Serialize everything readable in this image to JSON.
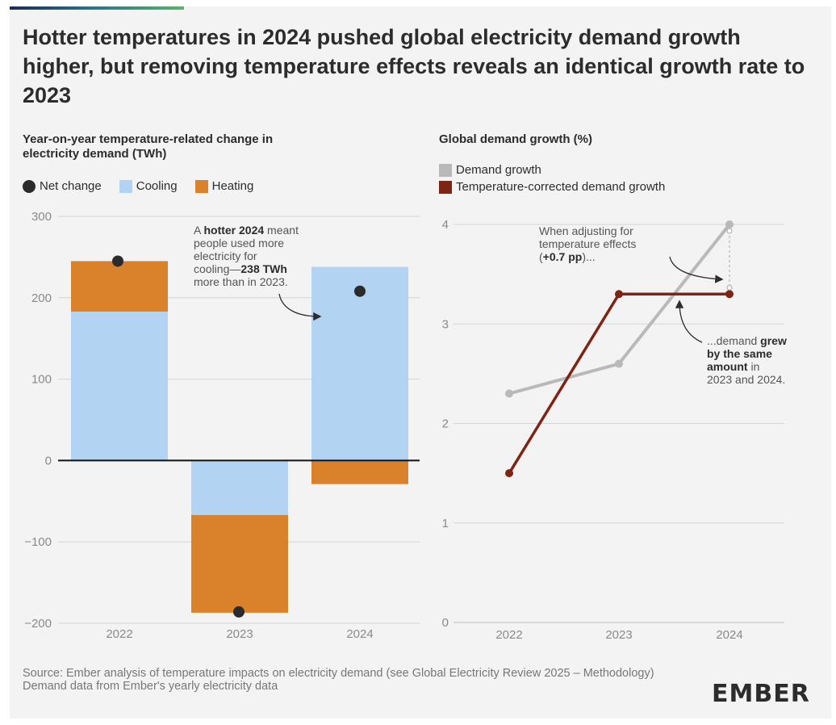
{
  "title": "Hotter temperatures in 2024 pushed global electricity demand growth higher, but removing temperature effects reveals an identical growth rate to 2023",
  "source_lines": [
    "Source: Ember analysis of temperature impacts on electricity demand (see Global Electricity Review 2025 – Methodology)",
    "Demand data from Ember's yearly electricity data"
  ],
  "logo": "EMBER",
  "chart_data": [
    {
      "type": "bar",
      "stacked": true,
      "title": "Year-on-year temperature-related change in electricity demand (TWh)",
      "categories": [
        "2022",
        "2023",
        "2024"
      ],
      "series": [
        {
          "name": "Cooling",
          "color": "#b3d3f2",
          "values": [
            183,
            -67,
            238
          ]
        },
        {
          "name": "Heating",
          "color": "#d9822b",
          "values": [
            62,
            -120,
            -29
          ]
        }
      ],
      "net_change": {
        "name": "Net change",
        "color": "#2b2b2b",
        "values": [
          245,
          -186,
          208
        ]
      },
      "ylim": [
        -200,
        300
      ],
      "yticks": [
        -200,
        -100,
        0,
        100,
        200,
        300
      ],
      "ytick_labels": [
        "−200",
        "−100",
        "0",
        "100",
        "200",
        "300"
      ],
      "grid": true,
      "legend": "top-left",
      "annotation": {
        "lines": [
          [
            {
              "t": "A "
            },
            {
              "t": "hotter 2024",
              "b": true
            },
            {
              "t": " meant"
            }
          ],
          [
            {
              "t": "people used more"
            }
          ],
          [
            {
              "t": "electricity for"
            }
          ],
          [
            {
              "t": "cooling—"
            },
            {
              "t": "238 TWh",
              "b": true
            }
          ],
          [
            {
              "t": "more than in 2023."
            }
          ]
        ]
      }
    },
    {
      "type": "line",
      "title": "Global demand growth (%)",
      "x": [
        "2022",
        "2023",
        "2024"
      ],
      "series": [
        {
          "name": "Demand growth",
          "color": "#b9b9b9",
          "values": [
            2.3,
            2.6,
            4.0
          ]
        },
        {
          "name": "Temperature-corrected demand growth",
          "color": "#7d2414",
          "values": [
            1.5,
            3.3,
            3.3
          ]
        }
      ],
      "ylim": [
        0,
        4
      ],
      "yticks": [
        0,
        1,
        2,
        3,
        4
      ],
      "grid": true,
      "legend": "top-left",
      "annotations": [
        {
          "lines": [
            [
              {
                "t": "When adjusting for"
              }
            ],
            [
              {
                "t": "temperature effects"
              }
            ],
            [
              {
                "t": "("
              },
              {
                "t": "+0.7 pp",
                "b": true
              },
              {
                "t": ")..."
              }
            ]
          ]
        },
        {
          "lines": [
            [
              {
                "t": "...demand "
              },
              {
                "t": "grew",
                "b": true
              }
            ],
            [
              {
                "t": "by the same",
                "b": true
              }
            ],
            [
              {
                "t": "amount",
                "b": true
              },
              {
                "t": " in"
              }
            ],
            [
              {
                "t": "2023 and 2024."
              }
            ]
          ]
        }
      ]
    }
  ]
}
